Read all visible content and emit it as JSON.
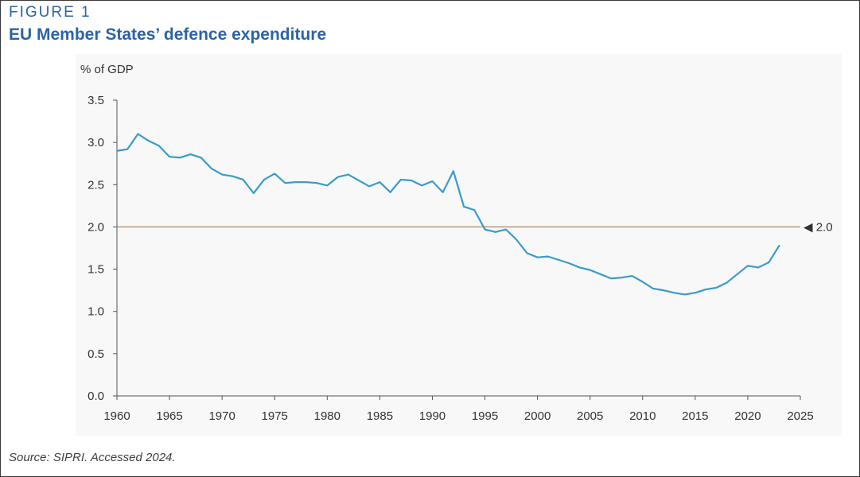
{
  "figure": {
    "label": "FIGURE 1",
    "title": "EU Member States’ defence expenditure",
    "source": "Source: SIPRI. Accessed 2024."
  },
  "colors": {
    "accent": "#2c63a6",
    "series": "#3a9bc9",
    "reference": "#a6785a",
    "axis": "#555555"
  },
  "chart_data": {
    "type": "line",
    "title": "EU Member States’ defence expenditure",
    "ylabel": "% of GDP",
    "xlabel": "",
    "xlim": [
      1960,
      2025
    ],
    "ylim": [
      0,
      3.5
    ],
    "xticks": [
      1960,
      1965,
      1970,
      1975,
      1980,
      1985,
      1990,
      1995,
      2000,
      2005,
      2010,
      2015,
      2020,
      2025
    ],
    "yticks": [
      0.0,
      0.5,
      1.0,
      1.5,
      2.0,
      2.5,
      3.0,
      3.5
    ],
    "grid": false,
    "legend": "none",
    "reference_line": {
      "y": 2.0,
      "label": "◀ 2.0"
    },
    "series": [
      {
        "x": [
          1960,
          1961,
          1962,
          1963,
          1964,
          1965,
          1966,
          1967,
          1968,
          1969,
          1970,
          1971,
          1972,
          1973,
          1974,
          1975,
          1976,
          1977,
          1978,
          1979,
          1980,
          1981,
          1982,
          1983,
          1984,
          1985,
          1986,
          1987,
          1988,
          1989,
          1990,
          1991,
          1992,
          1993,
          1994,
          1995,
          1996,
          1997,
          1998,
          1999,
          2000,
          2001,
          2002,
          2003,
          2004,
          2005,
          2006,
          2007,
          2008,
          2009,
          2010,
          2011,
          2012,
          2013,
          2014,
          2015,
          2016,
          2017,
          2018,
          2019,
          2020,
          2021,
          2022,
          2023
        ],
        "values": [
          2.9,
          2.92,
          3.1,
          3.02,
          2.96,
          2.83,
          2.82,
          2.86,
          2.82,
          2.69,
          2.62,
          2.6,
          2.56,
          2.4,
          2.56,
          2.63,
          2.52,
          2.53,
          2.53,
          2.52,
          2.49,
          2.59,
          2.62,
          2.55,
          2.48,
          2.53,
          2.41,
          2.56,
          2.55,
          2.49,
          2.54,
          2.41,
          2.66,
          2.24,
          2.2,
          1.97,
          1.94,
          1.97,
          1.85,
          1.69,
          1.64,
          1.65,
          1.61,
          1.57,
          1.52,
          1.49,
          1.44,
          1.39,
          1.4,
          1.42,
          1.35,
          1.27,
          1.25,
          1.22,
          1.2,
          1.22,
          1.26,
          1.28,
          1.34,
          1.44,
          1.54,
          1.52,
          1.58,
          1.78
        ]
      }
    ]
  }
}
